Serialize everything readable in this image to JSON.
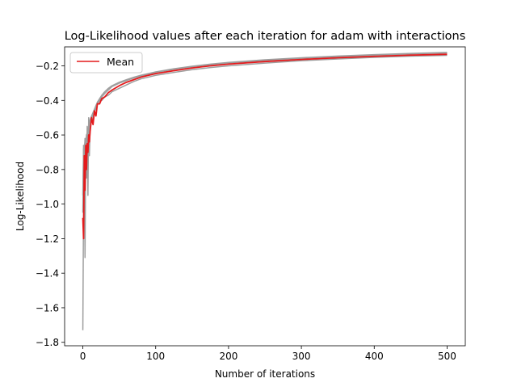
{
  "chart_data": {
    "type": "line",
    "title": "Log-Likelihood values after each iteration for adam with interactions",
    "xlabel": "Number of iterations",
    "ylabel": "Log-Likelihood",
    "xlim": [
      -25,
      525
    ],
    "ylim": [
      -1.82,
      -0.09
    ],
    "xticks": [
      0,
      100,
      200,
      300,
      400,
      500
    ],
    "xtick_labels": [
      "0",
      "100",
      "200",
      "300",
      "400",
      "500"
    ],
    "yticks": [
      -1.8,
      -1.6,
      -1.4,
      -1.2,
      -1.0,
      -0.8,
      -0.6,
      -0.4,
      -0.2
    ],
    "ytick_labels": [
      "−1.8",
      "−1.6",
      "−1.4",
      "−1.2",
      "−1.0",
      "−0.8",
      "−0.6",
      "−0.4",
      "−0.2"
    ],
    "grid": false,
    "legend": {
      "position": "top-left",
      "entries": [
        "Mean"
      ]
    },
    "colors": {
      "mean": "#e41a1c",
      "runs": "#9e9e9e"
    },
    "series": [
      {
        "name": "Mean",
        "role": "mean",
        "x": [
          0,
          1,
          2,
          3,
          4,
          5,
          6,
          7,
          8,
          9,
          10,
          12,
          14,
          16,
          18,
          20,
          23,
          26,
          30,
          35,
          40,
          50,
          60,
          70,
          80,
          100,
          125,
          150,
          175,
          200,
          250,
          300,
          350,
          400,
          450,
          500
        ],
        "y": [
          -1.08,
          -1.2,
          -0.72,
          -0.92,
          -0.66,
          -0.8,
          -0.65,
          -0.7,
          -0.6,
          -0.64,
          -0.58,
          -0.5,
          -0.54,
          -0.46,
          -0.49,
          -0.42,
          -0.42,
          -0.39,
          -0.38,
          -0.355,
          -0.34,
          -0.315,
          -0.295,
          -0.28,
          -0.265,
          -0.245,
          -0.228,
          -0.212,
          -0.2,
          -0.19,
          -0.175,
          -0.163,
          -0.153,
          -0.145,
          -0.138,
          -0.133
        ]
      },
      {
        "role": "run",
        "x": [
          0,
          1,
          2,
          3,
          4,
          5,
          6,
          7,
          8,
          9,
          10,
          12,
          14,
          16,
          18,
          20,
          23,
          26,
          30,
          35,
          40,
          50,
          60,
          70,
          80,
          100,
          125,
          150,
          175,
          200,
          250,
          300,
          350,
          400,
          450,
          500
        ],
        "y": [
          -1.73,
          -1.0,
          -0.7,
          -1.31,
          -0.62,
          -0.85,
          -0.55,
          -0.95,
          -0.5,
          -0.72,
          -0.55,
          -0.52,
          -0.5,
          -0.46,
          -0.45,
          -0.42,
          -0.4,
          -0.4,
          -0.38,
          -0.37,
          -0.35,
          -0.33,
          -0.31,
          -0.29,
          -0.275,
          -0.255,
          -0.238,
          -0.222,
          -0.21,
          -0.2,
          -0.184,
          -0.17,
          -0.16,
          -0.151,
          -0.144,
          -0.139
        ]
      },
      {
        "role": "run",
        "x": [
          0,
          1,
          2,
          3,
          4,
          5,
          6,
          7,
          8,
          9,
          10,
          12,
          14,
          16,
          18,
          20,
          23,
          26,
          30,
          35,
          40,
          50,
          60,
          70,
          80,
          100,
          125,
          150,
          175,
          200,
          250,
          300,
          350,
          400,
          450,
          500
        ],
        "y": [
          -0.95,
          -0.68,
          -0.72,
          -0.64,
          -0.66,
          -0.62,
          -0.6,
          -0.58,
          -0.56,
          -0.54,
          -0.52,
          -0.5,
          -0.48,
          -0.46,
          -0.44,
          -0.42,
          -0.4,
          -0.38,
          -0.36,
          -0.34,
          -0.32,
          -0.3,
          -0.285,
          -0.27,
          -0.258,
          -0.238,
          -0.22,
          -0.205,
          -0.193,
          -0.183,
          -0.168,
          -0.156,
          -0.146,
          -0.138,
          -0.131,
          -0.125
        ]
      },
      {
        "role": "run",
        "x": [
          0,
          1,
          2,
          3,
          4,
          5,
          6,
          7,
          8,
          9,
          10,
          12,
          14,
          16,
          18,
          20,
          23,
          26,
          30,
          35,
          40,
          50,
          60,
          70,
          80,
          100,
          125,
          150,
          175,
          200,
          250,
          300,
          350,
          400,
          450,
          500
        ],
        "y": [
          -1.05,
          -0.66,
          -0.7,
          -0.62,
          -0.65,
          -0.6,
          -0.59,
          -0.57,
          -0.55,
          -0.53,
          -0.51,
          -0.49,
          -0.47,
          -0.45,
          -0.43,
          -0.41,
          -0.39,
          -0.37,
          -0.35,
          -0.33,
          -0.315,
          -0.295,
          -0.28,
          -0.266,
          -0.254,
          -0.235,
          -0.217,
          -0.202,
          -0.19,
          -0.18,
          -0.165,
          -0.153,
          -0.143,
          -0.135,
          -0.128,
          -0.122
        ]
      }
    ]
  }
}
